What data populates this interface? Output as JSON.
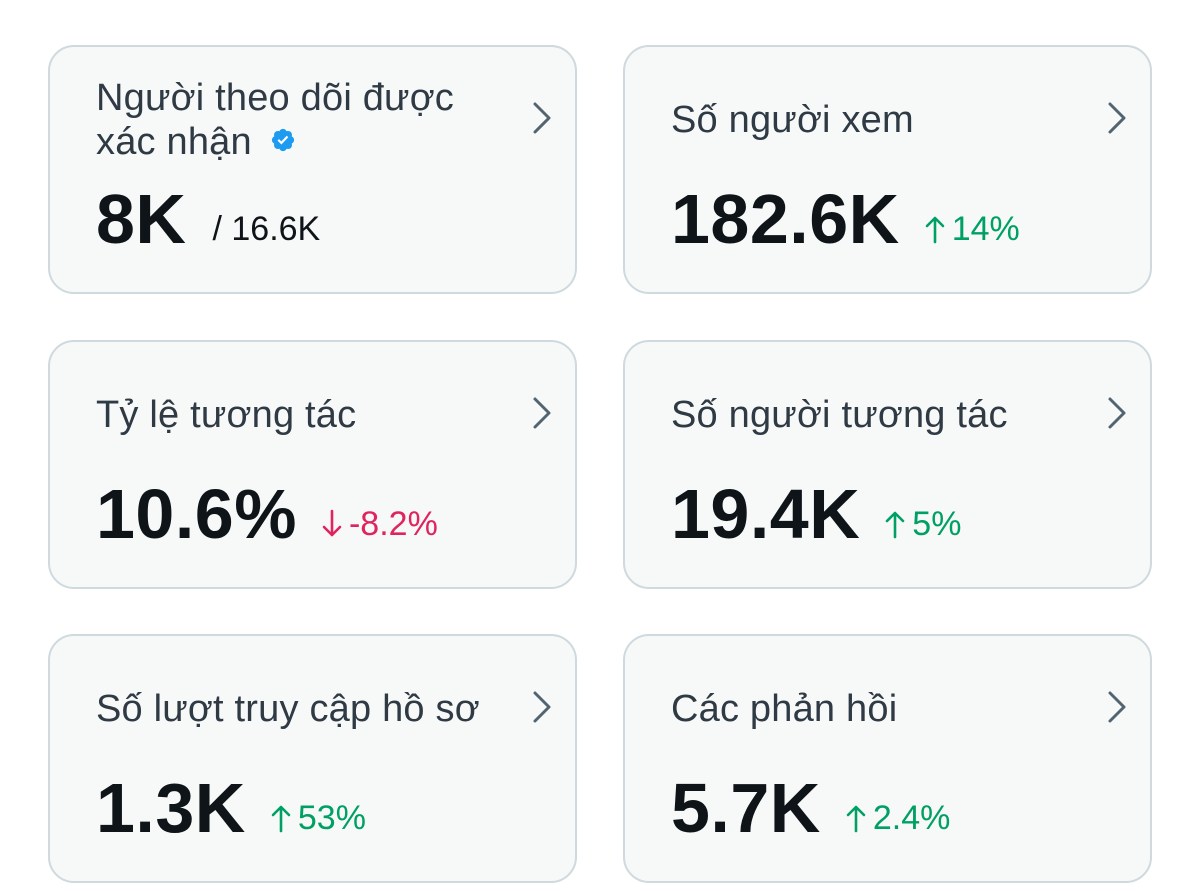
{
  "colors": {
    "card_bg": "#f7f9f9",
    "card_border": "#cfd9de",
    "positive": "#00a064",
    "negative": "#e0245e",
    "verified_blue": "#1d9bf0",
    "chevron": "#536471"
  },
  "cards": [
    {
      "title": "Người theo dõi được xác nhận",
      "icon": "verified-badge-icon",
      "value": "8K",
      "secondary": "/ 16.6K"
    },
    {
      "title": "Số người xem",
      "value": "182.6K",
      "change": "14%",
      "direction": "up"
    },
    {
      "title": "Tỷ lệ tương tác",
      "value": "10.6%",
      "change": "-8.2%",
      "direction": "down"
    },
    {
      "title": "Số người tương tác",
      "value": "19.4K",
      "change": "5%",
      "direction": "up"
    },
    {
      "title": "Số lượt truy cập hồ sơ",
      "value": "1.3K",
      "change": "53%",
      "direction": "up"
    },
    {
      "title": "Các phản hồi",
      "value": "5.7K",
      "change": "2.4%",
      "direction": "up"
    }
  ]
}
